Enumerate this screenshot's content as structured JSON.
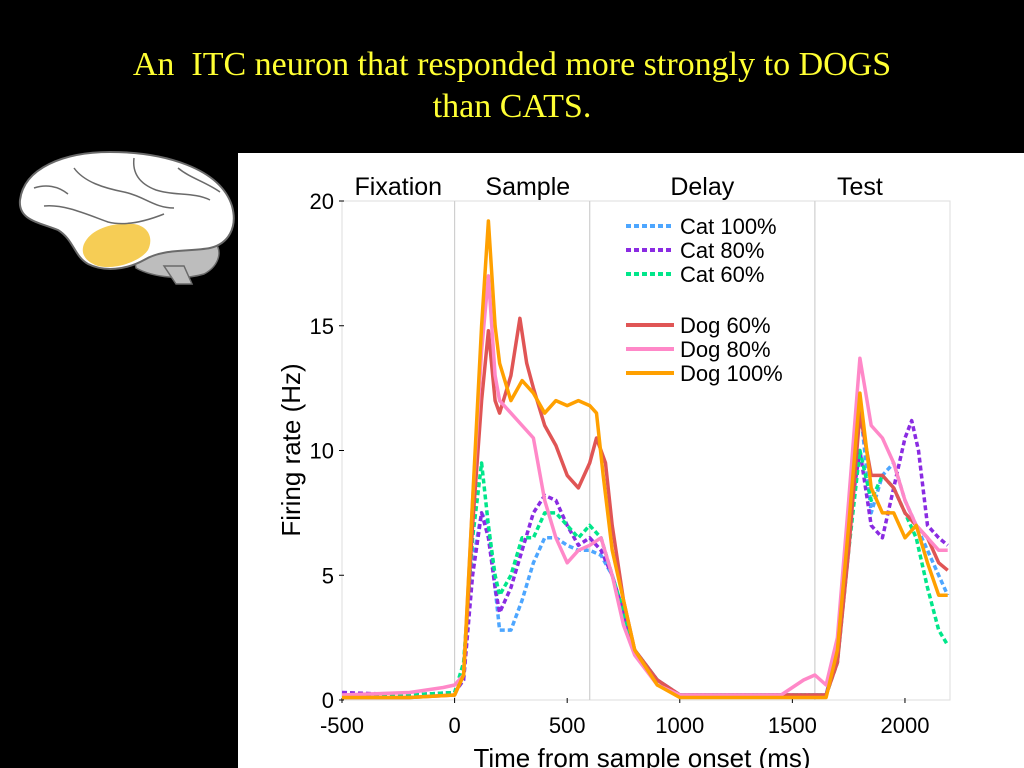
{
  "slide": {
    "title_line1": "An  ITC neuron that responded more strongly to DOGS",
    "title_line2": "than CATS.",
    "title_color": "#ffff33",
    "background": "#000000",
    "brain_highlight_color": "#f5c842"
  },
  "chart_data": {
    "type": "line",
    "xlabel": "Time from sample onset (ms)",
    "ylabel": "Firing rate (Hz)",
    "xlim": [
      -500,
      2200
    ],
    "ylim": [
      0,
      20
    ],
    "xticks": [
      -500,
      0,
      500,
      1000,
      1500,
      2000
    ],
    "yticks": [
      0,
      5,
      10,
      15,
      20
    ],
    "epoch_boundaries": [
      0,
      600,
      1600
    ],
    "epochs": [
      {
        "label": "Fixation",
        "x": -250
      },
      {
        "label": "Sample",
        "x": 325
      },
      {
        "label": "Delay",
        "x": 1100
      },
      {
        "label": "Test",
        "x": 1800
      }
    ],
    "legend_position": "top-right",
    "series": [
      {
        "name": "Cat 100%",
        "color": "#4da6ff",
        "dashed": true,
        "points": [
          [
            -500,
            0.2
          ],
          [
            -200,
            0.2
          ],
          [
            0,
            0.3
          ],
          [
            40,
            0.8
          ],
          [
            80,
            5.5
          ],
          [
            120,
            7.5
          ],
          [
            150,
            7
          ],
          [
            180,
            4.5
          ],
          [
            200,
            2.8
          ],
          [
            250,
            2.8
          ],
          [
            300,
            4
          ],
          [
            350,
            5.5
          ],
          [
            400,
            6.5
          ],
          [
            450,
            6.5
          ],
          [
            500,
            6.2
          ],
          [
            550,
            6
          ],
          [
            600,
            6
          ],
          [
            650,
            5.8
          ],
          [
            700,
            5
          ],
          [
            750,
            3.5
          ],
          [
            800,
            2
          ],
          [
            900,
            0.8
          ],
          [
            1000,
            0.2
          ],
          [
            1300,
            0.2
          ],
          [
            1500,
            0.2
          ],
          [
            1650,
            0.2
          ],
          [
            1700,
            2
          ],
          [
            1750,
            7
          ],
          [
            1800,
            11.8
          ],
          [
            1850,
            7.5
          ],
          [
            1900,
            9
          ],
          [
            1950,
            9.5
          ],
          [
            2000,
            8
          ],
          [
            2050,
            7
          ],
          [
            2100,
            6
          ],
          [
            2150,
            5
          ],
          [
            2190,
            4.2
          ]
        ]
      },
      {
        "name": "Cat 80%",
        "color": "#8a2be2",
        "dashed": true,
        "points": [
          [
            -500,
            0.3
          ],
          [
            -200,
            0.2
          ],
          [
            0,
            0.3
          ],
          [
            40,
            0.8
          ],
          [
            80,
            5
          ],
          [
            120,
            7.5
          ],
          [
            150,
            6.5
          ],
          [
            180,
            4.5
          ],
          [
            200,
            3.5
          ],
          [
            250,
            4.5
          ],
          [
            300,
            6
          ],
          [
            350,
            7.5
          ],
          [
            400,
            8.2
          ],
          [
            450,
            8
          ],
          [
            500,
            7
          ],
          [
            550,
            6.2
          ],
          [
            600,
            6.5
          ],
          [
            650,
            6
          ],
          [
            700,
            5
          ],
          [
            750,
            3.5
          ],
          [
            800,
            2
          ],
          [
            900,
            0.8
          ],
          [
            1000,
            0.2
          ],
          [
            1300,
            0.2
          ],
          [
            1500,
            0.2
          ],
          [
            1650,
            0.2
          ],
          [
            1700,
            2
          ],
          [
            1750,
            7
          ],
          [
            1800,
            10
          ],
          [
            1850,
            7
          ],
          [
            1900,
            6.5
          ],
          [
            1950,
            8.5
          ],
          [
            2000,
            10.5
          ],
          [
            2030,
            11.2
          ],
          [
            2060,
            10
          ],
          [
            2100,
            7
          ],
          [
            2150,
            6.5
          ],
          [
            2190,
            6.2
          ]
        ]
      },
      {
        "name": "Cat 60%",
        "color": "#00e68a",
        "dashed": true,
        "points": [
          [
            -500,
            0.1
          ],
          [
            -200,
            0.2
          ],
          [
            0,
            0.3
          ],
          [
            40,
            1.5
          ],
          [
            80,
            6.5
          ],
          [
            120,
            9.5
          ],
          [
            150,
            7
          ],
          [
            180,
            5
          ],
          [
            200,
            4.2
          ],
          [
            250,
            5
          ],
          [
            300,
            6.5
          ],
          [
            350,
            6.5
          ],
          [
            400,
            7.5
          ],
          [
            450,
            7.5
          ],
          [
            500,
            7
          ],
          [
            550,
            6.5
          ],
          [
            600,
            7
          ],
          [
            650,
            6.5
          ],
          [
            700,
            5
          ],
          [
            750,
            3.5
          ],
          [
            800,
            2
          ],
          [
            900,
            0.8
          ],
          [
            1000,
            0.2
          ],
          [
            1300,
            0.2
          ],
          [
            1500,
            0.2
          ],
          [
            1650,
            0.2
          ],
          [
            1700,
            1.5
          ],
          [
            1750,
            6
          ],
          [
            1800,
            10
          ],
          [
            1850,
            8
          ],
          [
            1900,
            9
          ],
          [
            1950,
            8.5
          ],
          [
            2000,
            7.5
          ],
          [
            2050,
            6.5
          ],
          [
            2100,
            4.5
          ],
          [
            2150,
            2.8
          ],
          [
            2190,
            2.2
          ]
        ]
      },
      {
        "name": "Dog 60%",
        "color": "#e05555",
        "dashed": false,
        "points": [
          [
            -500,
            0.1
          ],
          [
            -200,
            0.1
          ],
          [
            0,
            0.2
          ],
          [
            40,
            1
          ],
          [
            80,
            7
          ],
          [
            120,
            12
          ],
          [
            150,
            14.8
          ],
          [
            180,
            12
          ],
          [
            200,
            11.5
          ],
          [
            250,
            13
          ],
          [
            290,
            15.3
          ],
          [
            320,
            13.5
          ],
          [
            350,
            12.5
          ],
          [
            400,
            11
          ],
          [
            450,
            10.2
          ],
          [
            500,
            9
          ],
          [
            550,
            8.5
          ],
          [
            600,
            9.5
          ],
          [
            630,
            10.5
          ],
          [
            670,
            9.5
          ],
          [
            700,
            7
          ],
          [
            750,
            4
          ],
          [
            800,
            2
          ],
          [
            900,
            0.8
          ],
          [
            1000,
            0.2
          ],
          [
            1300,
            0.2
          ],
          [
            1500,
            0.2
          ],
          [
            1650,
            0.2
          ],
          [
            1700,
            1.5
          ],
          [
            1750,
            6
          ],
          [
            1800,
            11.5
          ],
          [
            1850,
            9
          ],
          [
            1900,
            9
          ],
          [
            1950,
            8.5
          ],
          [
            2000,
            7.5
          ],
          [
            2050,
            7
          ],
          [
            2100,
            6.5
          ],
          [
            2150,
            5.5
          ],
          [
            2190,
            5.2
          ]
        ]
      },
      {
        "name": "Dog 80%",
        "color": "#ff88c8",
        "dashed": false,
        "points": [
          [
            -500,
            0.2
          ],
          [
            -200,
            0.3
          ],
          [
            -50,
            0.5
          ],
          [
            0,
            0.6
          ],
          [
            40,
            1
          ],
          [
            80,
            8
          ],
          [
            120,
            14
          ],
          [
            150,
            17
          ],
          [
            180,
            13
          ],
          [
            200,
            12
          ],
          [
            250,
            11.5
          ],
          [
            300,
            11
          ],
          [
            350,
            10.5
          ],
          [
            400,
            8
          ],
          [
            450,
            6.5
          ],
          [
            500,
            5.5
          ],
          [
            550,
            6
          ],
          [
            600,
            6.2
          ],
          [
            650,
            6.5
          ],
          [
            700,
            5
          ],
          [
            750,
            3
          ],
          [
            800,
            1.8
          ],
          [
            900,
            0.6
          ],
          [
            1000,
            0.2
          ],
          [
            1300,
            0.2
          ],
          [
            1450,
            0.2
          ],
          [
            1550,
            0.8
          ],
          [
            1600,
            1
          ],
          [
            1650,
            0.6
          ],
          [
            1700,
            2.5
          ],
          [
            1750,
            8
          ],
          [
            1800,
            13.7
          ],
          [
            1850,
            11
          ],
          [
            1900,
            10.5
          ],
          [
            1950,
            9.5
          ],
          [
            2000,
            8
          ],
          [
            2050,
            7
          ],
          [
            2100,
            6.5
          ],
          [
            2150,
            6
          ],
          [
            2190,
            6
          ]
        ]
      },
      {
        "name": "Dog 100%",
        "color": "#ffa000",
        "dashed": false,
        "points": [
          [
            -500,
            0.1
          ],
          [
            -200,
            0.1
          ],
          [
            0,
            0.2
          ],
          [
            40,
            1
          ],
          [
            80,
            8
          ],
          [
            120,
            15
          ],
          [
            150,
            19.2
          ],
          [
            180,
            15
          ],
          [
            200,
            13.5
          ],
          [
            250,
            12
          ],
          [
            300,
            12.8
          ],
          [
            350,
            12.3
          ],
          [
            400,
            11.5
          ],
          [
            450,
            12
          ],
          [
            500,
            11.8
          ],
          [
            550,
            12
          ],
          [
            600,
            11.8
          ],
          [
            630,
            11.5
          ],
          [
            660,
            9
          ],
          [
            700,
            6
          ],
          [
            750,
            4
          ],
          [
            800,
            2
          ],
          [
            900,
            0.6
          ],
          [
            1000,
            0.1
          ],
          [
            1300,
            0.1
          ],
          [
            1500,
            0.1
          ],
          [
            1650,
            0.1
          ],
          [
            1700,
            2
          ],
          [
            1750,
            7
          ],
          [
            1800,
            12.3
          ],
          [
            1850,
            8.5
          ],
          [
            1900,
            7.5
          ],
          [
            1950,
            7.5
          ],
          [
            2000,
            6.5
          ],
          [
            2050,
            7
          ],
          [
            2100,
            5.5
          ],
          [
            2150,
            4.2
          ],
          [
            2190,
            4.2
          ]
        ]
      }
    ]
  }
}
